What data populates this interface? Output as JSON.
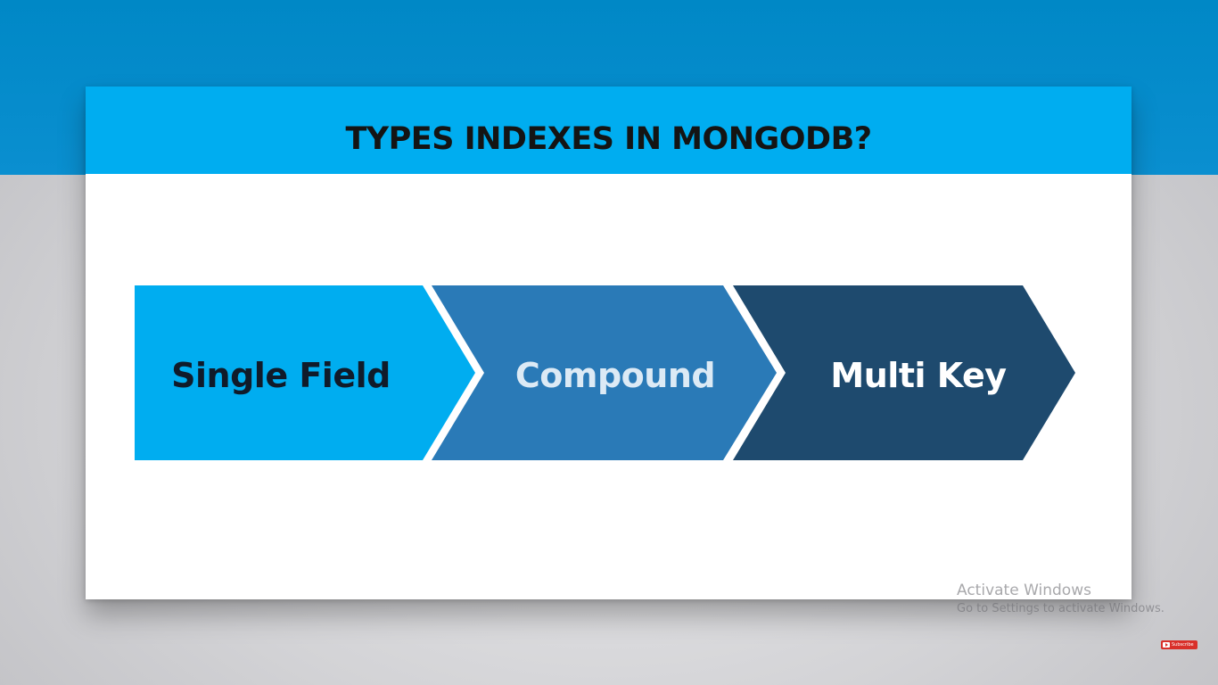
{
  "slide": {
    "title": "TYPES INDEXES IN MONGODB?"
  },
  "diagram": {
    "steps": [
      {
        "label": "Single Field",
        "color": "#00adf0"
      },
      {
        "label": "Compound",
        "color": "#2a7ab7"
      },
      {
        "label": "Multi Key",
        "color": "#1e4a6e"
      }
    ]
  },
  "colors": {
    "top_band": "#0088c6",
    "header": "#00adf0",
    "slide_background": "#ffffff",
    "page_background": "#d3d3d6"
  },
  "overlay": {
    "activate_title": "Activate Windows",
    "activate_sub": "Go to Settings to activate Windows.",
    "subscribe_label": "Subscribe",
    "subscribe_icon": "youtube-play-icon"
  }
}
